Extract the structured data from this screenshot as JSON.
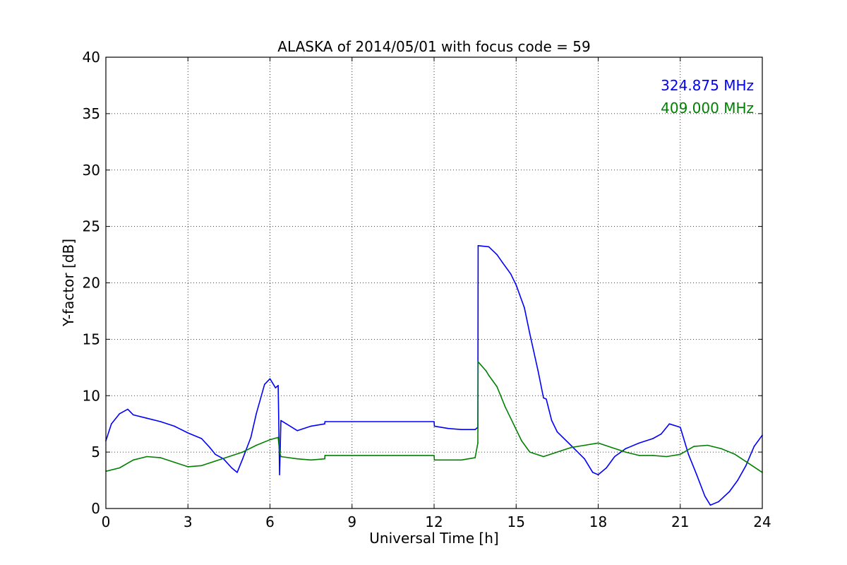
{
  "chart_data": {
    "type": "line",
    "title": "ALASKA of 2014/05/01 with focus code = 59",
    "xlabel": "Universal Time [h]",
    "ylabel": "Y-factor [dB]",
    "xlim": [
      0,
      24
    ],
    "ylim": [
      0,
      40
    ],
    "xticks": [
      "0",
      "3",
      "6",
      "9",
      "12",
      "15",
      "18",
      "21",
      "24"
    ],
    "yticks": [
      "0",
      "5",
      "10",
      "15",
      "20",
      "25",
      "30",
      "35",
      "40"
    ],
    "grid": true,
    "legend_position": "top-right",
    "series": [
      {
        "name": "324.875 MHz",
        "color": "#0000ff",
        "x": [
          0,
          0.2,
          0.5,
          0.8,
          1.0,
          1.5,
          2.0,
          2.5,
          3.0,
          3.5,
          3.8,
          4.0,
          4.3,
          4.6,
          4.8,
          5.0,
          5.3,
          5.5,
          5.8,
          6.0,
          6.2,
          6.3,
          6.35,
          6.4,
          6.6,
          7.0,
          7.5,
          8.0,
          8.01,
          12.0,
          12.01,
          12.5,
          13.0,
          13.5,
          13.6,
          13.61,
          14.0,
          14.3,
          14.5,
          14.8,
          15.0,
          15.3,
          15.5,
          15.8,
          16.0,
          16.1,
          16.3,
          16.5,
          17.0,
          17.5,
          17.8,
          18.0,
          18.3,
          18.6,
          19.0,
          19.5,
          20.0,
          20.3,
          20.6,
          21.0,
          21.3,
          21.6,
          21.9,
          22.1,
          22.4,
          22.8,
          23.1,
          23.4,
          23.7,
          24.0
        ],
        "y": [
          6.0,
          7.5,
          8.4,
          8.8,
          8.3,
          8.0,
          7.7,
          7.3,
          6.7,
          6.2,
          5.4,
          4.8,
          4.4,
          3.6,
          3.2,
          4.4,
          6.3,
          8.4,
          11.0,
          11.5,
          10.7,
          10.9,
          3.0,
          7.8,
          7.5,
          6.9,
          7.3,
          7.5,
          7.7,
          7.7,
          7.3,
          7.1,
          7.0,
          7.0,
          7.2,
          23.3,
          23.2,
          22.5,
          21.8,
          20.8,
          19.8,
          17.8,
          15.5,
          12.2,
          9.8,
          9.7,
          7.8,
          6.8,
          5.6,
          4.4,
          3.2,
          3.0,
          3.6,
          4.6,
          5.3,
          5.8,
          6.2,
          6.6,
          7.5,
          7.2,
          4.8,
          3.0,
          1.1,
          0.3,
          0.6,
          1.5,
          2.5,
          3.8,
          5.5,
          6.5
        ]
      },
      {
        "name": "409.000 MHz",
        "color": "#008000",
        "x": [
          0,
          0.5,
          1.0,
          1.5,
          2.0,
          2.5,
          3.0,
          3.5,
          4.0,
          4.5,
          5.0,
          5.5,
          6.0,
          6.3,
          6.35,
          6.4,
          7.0,
          7.5,
          8.0,
          8.01,
          12.0,
          12.01,
          12.5,
          13.0,
          13.5,
          13.6,
          13.61,
          13.9,
          14.0,
          14.3,
          14.6,
          14.9,
          15.2,
          15.5,
          16.0,
          16.5,
          17.0,
          17.5,
          18.0,
          18.5,
          19.0,
          19.5,
          20.0,
          20.5,
          21.0,
          21.5,
          22.0,
          22.5,
          23.0,
          23.5,
          24.0
        ],
        "y": [
          3.3,
          3.6,
          4.3,
          4.6,
          4.5,
          4.1,
          3.7,
          3.8,
          4.2,
          4.6,
          5.0,
          5.6,
          6.1,
          6.3,
          5.0,
          4.6,
          4.4,
          4.3,
          4.4,
          4.7,
          4.7,
          4.3,
          4.3,
          4.3,
          4.5,
          5.8,
          13.0,
          12.2,
          11.8,
          10.8,
          9.0,
          7.5,
          6.0,
          5.0,
          4.6,
          5.0,
          5.4,
          5.6,
          5.8,
          5.4,
          5.0,
          4.7,
          4.7,
          4.6,
          4.8,
          5.5,
          5.6,
          5.3,
          4.8,
          4.0,
          3.2
        ]
      }
    ]
  }
}
